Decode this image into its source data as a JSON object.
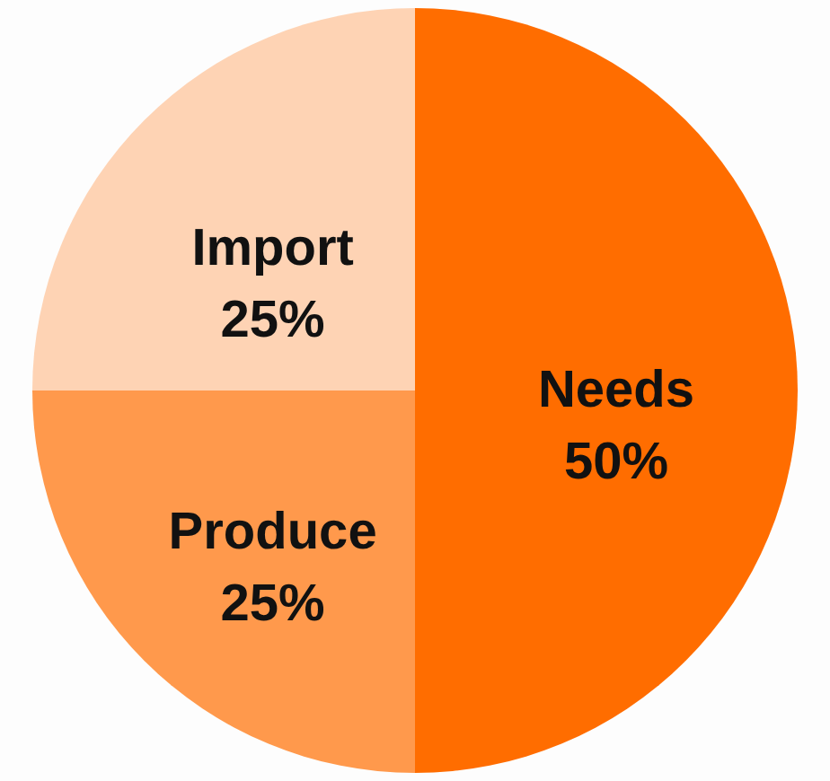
{
  "chart_data": {
    "type": "pie",
    "categories": [
      "Needs",
      "Produce",
      "Import"
    ],
    "values": [
      50,
      25,
      25
    ],
    "colors": [
      "#ff6d00",
      "#ff994c",
      "#fed3b4"
    ],
    "value_labels": [
      "50%",
      "25%",
      "25%"
    ]
  }
}
